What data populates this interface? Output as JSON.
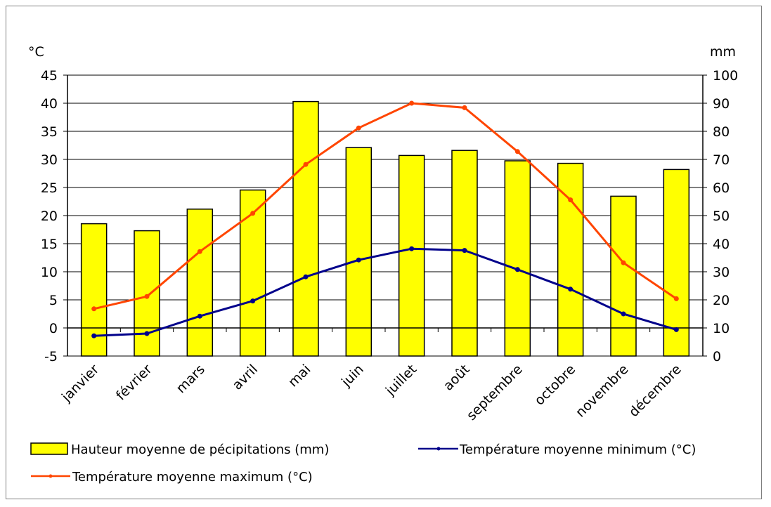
{
  "chart_data": {
    "type": "bar",
    "categories": [
      "janvier",
      "février",
      "mars",
      "avril",
      "mai",
      "juin",
      "juillet",
      "août",
      "septembre",
      "octobre",
      "novembre",
      "décembre"
    ],
    "y_left": {
      "unit_label": "°C",
      "ylim": [
        -5,
        45
      ],
      "ticks": [
        -5,
        0,
        5,
        10,
        15,
        20,
        25,
        30,
        35,
        40,
        45
      ]
    },
    "y_right": {
      "unit_label": "mm",
      "ylim": [
        0,
        100
      ],
      "ticks": [
        0,
        10,
        20,
        30,
        40,
        50,
        60,
        70,
        80,
        90,
        100
      ]
    },
    "series": [
      {
        "name": "Hauteur moyenne de pécipitations (mm)",
        "type": "bar",
        "axis": "right",
        "color": "#ffff00",
        "values": [
          47.1,
          44.6,
          52.3,
          59.1,
          90.6,
          74.2,
          71.4,
          73.2,
          69.5,
          68.6,
          56.9,
          66.4
        ]
      },
      {
        "name": "Température moyenne minimum (°C)",
        "type": "line",
        "axis": "left",
        "color": "#00008b",
        "values": [
          -1.4,
          -1.0,
          2.1,
          4.8,
          9.1,
          12.1,
          14.1,
          13.8,
          10.4,
          6.9,
          2.5,
          -0.3
        ]
      },
      {
        "name": "Température moyenne maximum (°C)",
        "type": "line",
        "axis": "left",
        "color": "#ff4500",
        "values": [
          3.4,
          5.6,
          13.6,
          20.4,
          29.1,
          35.6,
          40.0,
          39.2,
          31.4,
          22.8,
          11.6,
          5.2
        ]
      }
    ],
    "grid": "horizontal",
    "legend_position": "bottom"
  }
}
